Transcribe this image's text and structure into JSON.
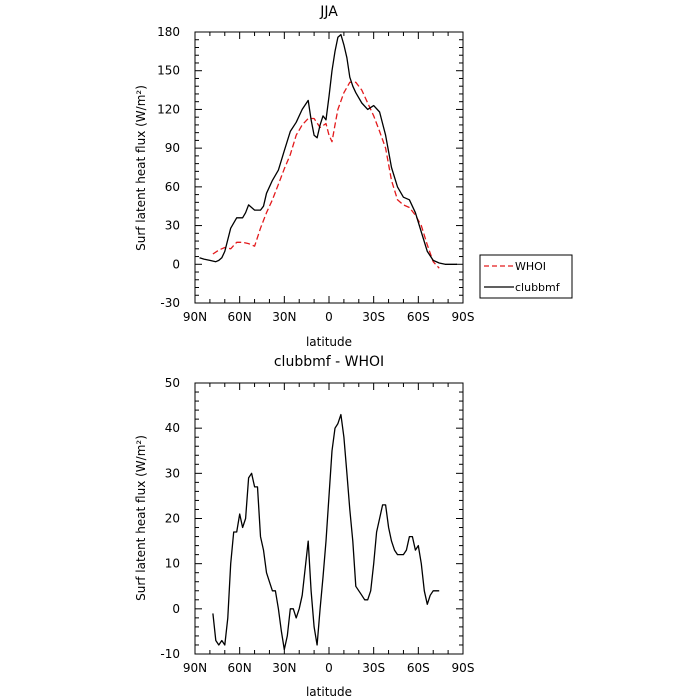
{
  "chart_data": [
    {
      "type": "line",
      "title": "JJA",
      "xlabel": "latitude",
      "ylabel": "Surf latent heat flux (W/m²)",
      "xlim": [
        90,
        -90
      ],
      "ylim": [
        -30,
        180
      ],
      "x_ticks": [
        90,
        60,
        30,
        0,
        -30,
        -60,
        -90
      ],
      "x_tick_labels": [
        "90N",
        "60N",
        "30N",
        "0",
        "30S",
        "60S",
        "90S"
      ],
      "y_ticks": [
        -30,
        0,
        30,
        60,
        90,
        120,
        150,
        180
      ],
      "grid": false,
      "legend": "right",
      "series": [
        {
          "name": "WHOI",
          "color": "#e31a1c",
          "style": "dashed",
          "x": [
            78,
            74,
            70,
            66,
            62,
            58,
            54,
            50,
            46,
            42,
            38,
            34,
            30,
            26,
            22,
            18,
            14,
            10,
            6,
            2,
            0,
            -2,
            -4,
            -6,
            -10,
            -14,
            -18,
            -22,
            -26,
            -30,
            -34,
            -38,
            -42,
            -46,
            -50,
            -54,
            -58,
            -62,
            -66,
            -70,
            -74
          ],
          "y": [
            8,
            11,
            13,
            12,
            17,
            17,
            16,
            14,
            28,
            40,
            50,
            62,
            74,
            85,
            100,
            108,
            113,
            113,
            106,
            109,
            100,
            95,
            108,
            120,
            133,
            141,
            141,
            135,
            125,
            115,
            103,
            90,
            65,
            50,
            46,
            44,
            38,
            30,
            15,
            2,
            -3
          ]
        },
        {
          "name": "clubbmf",
          "color": "#000000",
          "style": "solid",
          "x": [
            87,
            84,
            80,
            76,
            74,
            72,
            70,
            66,
            62,
            58,
            56,
            54,
            50,
            46,
            44,
            42,
            38,
            34,
            30,
            26,
            22,
            18,
            14,
            12,
            10,
            8,
            6,
            4,
            2,
            0,
            -2,
            -4,
            -6,
            -8,
            -10,
            -12,
            -14,
            -16,
            -18,
            -22,
            -26,
            -30,
            -34,
            -38,
            -42,
            -46,
            -50,
            -54,
            -58,
            -62,
            -66,
            -70,
            -74,
            -78,
            -82,
            -86
          ],
          "y": [
            5,
            4,
            3,
            2,
            3,
            5,
            10,
            28,
            36,
            36,
            40,
            46,
            42,
            42,
            45,
            55,
            65,
            73,
            88,
            103,
            110,
            120,
            127,
            112,
            100,
            98,
            108,
            115,
            112,
            130,
            150,
            165,
            176,
            178,
            170,
            160,
            145,
            138,
            133,
            125,
            120,
            123,
            118,
            100,
            75,
            60,
            52,
            50,
            40,
            25,
            10,
            3,
            1,
            0,
            0,
            0
          ]
        }
      ]
    },
    {
      "type": "line",
      "title": "clubbmf - WHOI",
      "xlabel": "latitude",
      "ylabel": "Surf latent heat flux (W/m²)",
      "xlim": [
        90,
        -90
      ],
      "ylim": [
        -10,
        50
      ],
      "x_ticks": [
        90,
        60,
        30,
        0,
        -30,
        -60,
        -90
      ],
      "x_tick_labels": [
        "90N",
        "60N",
        "30N",
        "0",
        "30S",
        "60S",
        "90S"
      ],
      "y_ticks": [
        -10,
        0,
        10,
        20,
        30,
        40,
        50
      ],
      "grid": false,
      "series": [
        {
          "color": "#000000",
          "style": "solid",
          "x": [
            78,
            76,
            74,
            72,
            70,
            68,
            66,
            64,
            62,
            60,
            58,
            56,
            54,
            52,
            50,
            48,
            46,
            44,
            42,
            40,
            38,
            36,
            34,
            32,
            30,
            28,
            26,
            24,
            22,
            20,
            18,
            16,
            14,
            12,
            10,
            8,
            6,
            4,
            2,
            0,
            -2,
            -4,
            -6,
            -8,
            -10,
            -12,
            -14,
            -16,
            -18,
            -20,
            -22,
            -24,
            -26,
            -28,
            -30,
            -32,
            -34,
            -36,
            -38,
            -40,
            -42,
            -44,
            -46,
            -48,
            -50,
            -52,
            -54,
            -56,
            -58,
            -60,
            -62,
            -64,
            -66,
            -68,
            -70,
            -72,
            -74
          ],
          "y": [
            -1,
            -7,
            -8,
            -7,
            -8,
            -2,
            10,
            17,
            17,
            21,
            18,
            20,
            29,
            30,
            27,
            27,
            16,
            13,
            8,
            6,
            4,
            4,
            0,
            -5,
            -9,
            -6,
            0,
            0,
            -2,
            0,
            3,
            9,
            15,
            4,
            -4,
            -8,
            0,
            7,
            15,
            25,
            35,
            40,
            41,
            43,
            38,
            30,
            22,
            15,
            5,
            4,
            3,
            2,
            2,
            4,
            10,
            17,
            20,
            23,
            23,
            18,
            15,
            13,
            12,
            12,
            12,
            13,
            16,
            16,
            13,
            14,
            10,
            4,
            1,
            3,
            4,
            4,
            4
          ]
        }
      ]
    }
  ]
}
